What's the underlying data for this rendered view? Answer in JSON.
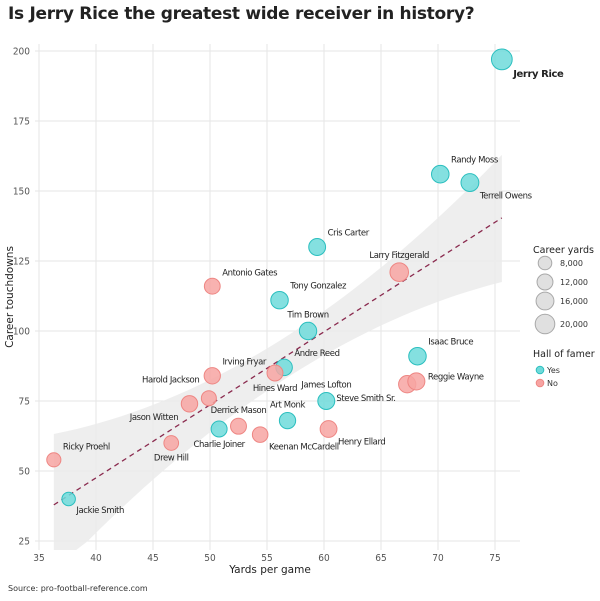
{
  "title": "Is Jerry Rice the greatest wide receiver in history?",
  "source": "Source: pro-football-reference.com",
  "colors": {
    "yes_fill": "#6fdada",
    "yes_stroke": "#2bbfbf",
    "no_fill": "#f7a4a2",
    "no_stroke": "#ee8683",
    "trend_line": "#8a2a4e",
    "ribbon": "#ebebeb",
    "grid": "#e6e6e6",
    "size_legend_fill": "#e0e0e0",
    "size_legend_stroke": "#a8a8a8"
  },
  "chart_data": {
    "type": "scatter",
    "title": "Is Jerry Rice the greatest wide receiver in history?",
    "xlabel": "Yards per game",
    "ylabel": "Career touchdowns",
    "xlim": [
      35,
      77
    ],
    "ylim": [
      22,
      205
    ],
    "x_ticks": [
      35,
      40,
      45,
      50,
      55,
      60,
      65,
      70,
      75
    ],
    "y_ticks": [
      25,
      50,
      75,
      100,
      125,
      150,
      175,
      200
    ],
    "grid": true,
    "points": [
      {
        "name": "Jerry Rice",
        "x": 75.6,
        "y": 197,
        "yards": 22895,
        "hof": "Yes",
        "label_pos": "below-right",
        "big": true
      },
      {
        "name": "Randy Moss",
        "x": 70.2,
        "y": 156,
        "yards": 15292,
        "hof": "Yes",
        "label_pos": "above-right"
      },
      {
        "name": "Terrell Owens",
        "x": 72.8,
        "y": 153,
        "yards": 15934,
        "hof": "Yes",
        "label_pos": "below-right"
      },
      {
        "name": "Cris Carter",
        "x": 59.4,
        "y": 130,
        "yards": 13899,
        "hof": "Yes",
        "label_pos": "above-right"
      },
      {
        "name": "Larry Fitzgerald",
        "x": 66.6,
        "y": 121,
        "yards": 17492,
        "hof": "No",
        "label_pos": "above"
      },
      {
        "name": "Antonio Gates",
        "x": 50.2,
        "y": 116,
        "yards": 11841,
        "hof": "No",
        "label_pos": "above-right"
      },
      {
        "name": "Tony Gonzalez",
        "x": 56.1,
        "y": 111,
        "yards": 15127,
        "hof": "Yes",
        "label_pos": "above-right"
      },
      {
        "name": "Tim Brown",
        "x": 58.6,
        "y": 100,
        "yards": 14934,
        "hof": "Yes",
        "label_pos": "above"
      },
      {
        "name": "Andre Reed",
        "x": 56.5,
        "y": 87,
        "yards": 13198,
        "hof": "Yes",
        "label_pos": "above-right"
      },
      {
        "name": "Hines Ward",
        "x": 55.7,
        "y": 85,
        "yards": 12083,
        "hof": "No",
        "label_pos": "below"
      },
      {
        "name": "Irving Fryar",
        "x": 50.2,
        "y": 84,
        "yards": 12785,
        "hof": "No",
        "label_pos": "above-right"
      },
      {
        "name": "Isaac Bruce",
        "x": 68.2,
        "y": 91,
        "yards": 15208,
        "hof": "Yes",
        "label_pos": "above-right"
      },
      {
        "name": "Reggie Wayne",
        "x": 68.1,
        "y": 82,
        "yards": 14345,
        "hof": "No",
        "label_pos": "right"
      },
      {
        "name": "Steve Smith Sr.",
        "x": 67.3,
        "y": 81,
        "yards": 14731,
        "hof": "No",
        "label_pos": "below-left"
      },
      {
        "name": "James Lofton",
        "x": 60.2,
        "y": 75,
        "yards": 14004,
        "hof": "Yes",
        "label_pos": "above"
      },
      {
        "name": "Art Monk",
        "x": 56.8,
        "y": 68,
        "yards": 12721,
        "hof": "Yes",
        "label_pos": "above"
      },
      {
        "name": "Henry Ellard",
        "x": 60.4,
        "y": 65,
        "yards": 13777,
        "hof": "No",
        "label_pos": "below-right"
      },
      {
        "name": "Keenan McCardell",
        "x": 54.4,
        "y": 63,
        "yards": 11373,
        "hof": "No",
        "label_pos": "below-right"
      },
      {
        "name": "Jason Witten",
        "x": 48.2,
        "y": 74,
        "yards": 13046,
        "hof": "No",
        "label_pos": "below-left"
      },
      {
        "name": "Harold Jackson",
        "x": 49.9,
        "y": 76,
        "yards": 10372,
        "hof": "No",
        "label_pos": "above-left"
      },
      {
        "name": "Derrick Mason",
        "x": 52.5,
        "y": 66,
        "yards": 12061,
        "hof": "No",
        "label_pos": "above"
      },
      {
        "name": "Charlie Joiner",
        "x": 50.8,
        "y": 65,
        "yards": 12146,
        "hof": "Yes",
        "label_pos": "below"
      },
      {
        "name": "Drew Hill",
        "x": 46.6,
        "y": 60,
        "yards": 9831,
        "hof": "No",
        "label_pos": "below"
      },
      {
        "name": "Ricky Proehl",
        "x": 36.3,
        "y": 54,
        "yards": 8878,
        "hof": "No",
        "label_pos": "above-right"
      },
      {
        "name": "Jackie Smith",
        "x": 37.6,
        "y": 40,
        "yards": 7918,
        "hof": "Yes",
        "label_pos": "below-right"
      }
    ],
    "trend": {
      "type": "linear",
      "x_range": [
        36.3,
        75.6
      ],
      "y_at_start": 37.9,
      "y_at_end": 140.4,
      "ribbon_upper": [
        [
          36.3,
          63.2
        ],
        [
          55.5,
          95
        ],
        [
          75.6,
          162.9
        ]
      ],
      "ribbon_lower": [
        [
          36.3,
          12.5
        ],
        [
          55.5,
          80
        ],
        [
          75.6,
          117.5
        ]
      ]
    },
    "legend": {
      "size_title": "Career yards",
      "size_entries": [
        {
          "label": "8,000",
          "value": 8000
        },
        {
          "label": "12,000",
          "value": 12000
        },
        {
          "label": "16,000",
          "value": 16000
        },
        {
          "label": "20,000",
          "value": 20000
        }
      ],
      "color_title": "Hall of famer",
      "color_entries": [
        {
          "label": "Yes",
          "key": "Yes"
        },
        {
          "label": "No",
          "key": "No"
        }
      ],
      "placement": "right"
    }
  }
}
